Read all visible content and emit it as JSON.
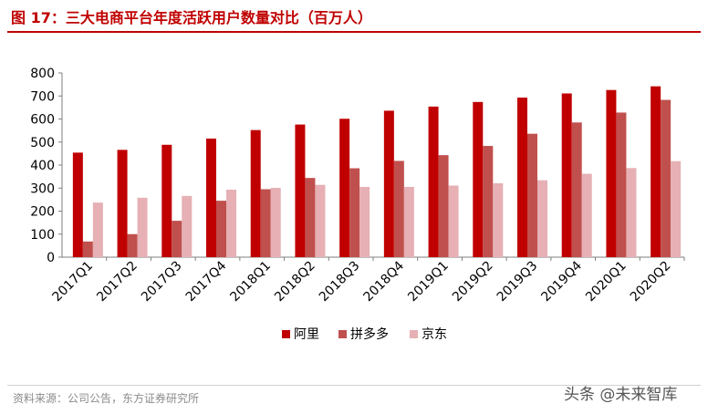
{
  "title": "图 17：三大电商平台年度活跃用户数量对比（百万人）",
  "source": "资料来源：公司公告，东方证券研究所",
  "watermark": "头条 @未来智库",
  "colors": {
    "title": "#c00000",
    "alibaba": "#c00000",
    "pinduoduo": "#c0504d",
    "jd": "#e6b0b4"
  },
  "chart_data": {
    "type": "bar",
    "categories": [
      "2017Q1",
      "2017Q2",
      "2017Q3",
      "2017Q4",
      "2018Q1",
      "2018Q2",
      "2018Q3",
      "2018Q4",
      "2019Q1",
      "2019Q2",
      "2019Q3",
      "2019Q4",
      "2020Q1",
      "2020Q2"
    ],
    "series": [
      {
        "name": "阿里",
        "color": "#c00000",
        "values": [
          454,
          466,
          488,
          515,
          552,
          576,
          601,
          636,
          654,
          674,
          693,
          711,
          726,
          742
        ]
      },
      {
        "name": "拼多多",
        "color": "#c0504d",
        "values": [
          68,
          100,
          158,
          245,
          295,
          344,
          386,
          418,
          443,
          483,
          536,
          585,
          628,
          683
        ]
      },
      {
        "name": "京东",
        "color": "#e6b0b4",
        "values": [
          237,
          258,
          266,
          293,
          301,
          314,
          305,
          305,
          311,
          321,
          334,
          362,
          387,
          417
        ]
      }
    ],
    "ylim": [
      0,
      800
    ],
    "yticks": [
      0,
      100,
      200,
      300,
      400,
      500,
      600,
      700,
      800
    ],
    "legend_position": "bottom-center",
    "grid": false
  }
}
